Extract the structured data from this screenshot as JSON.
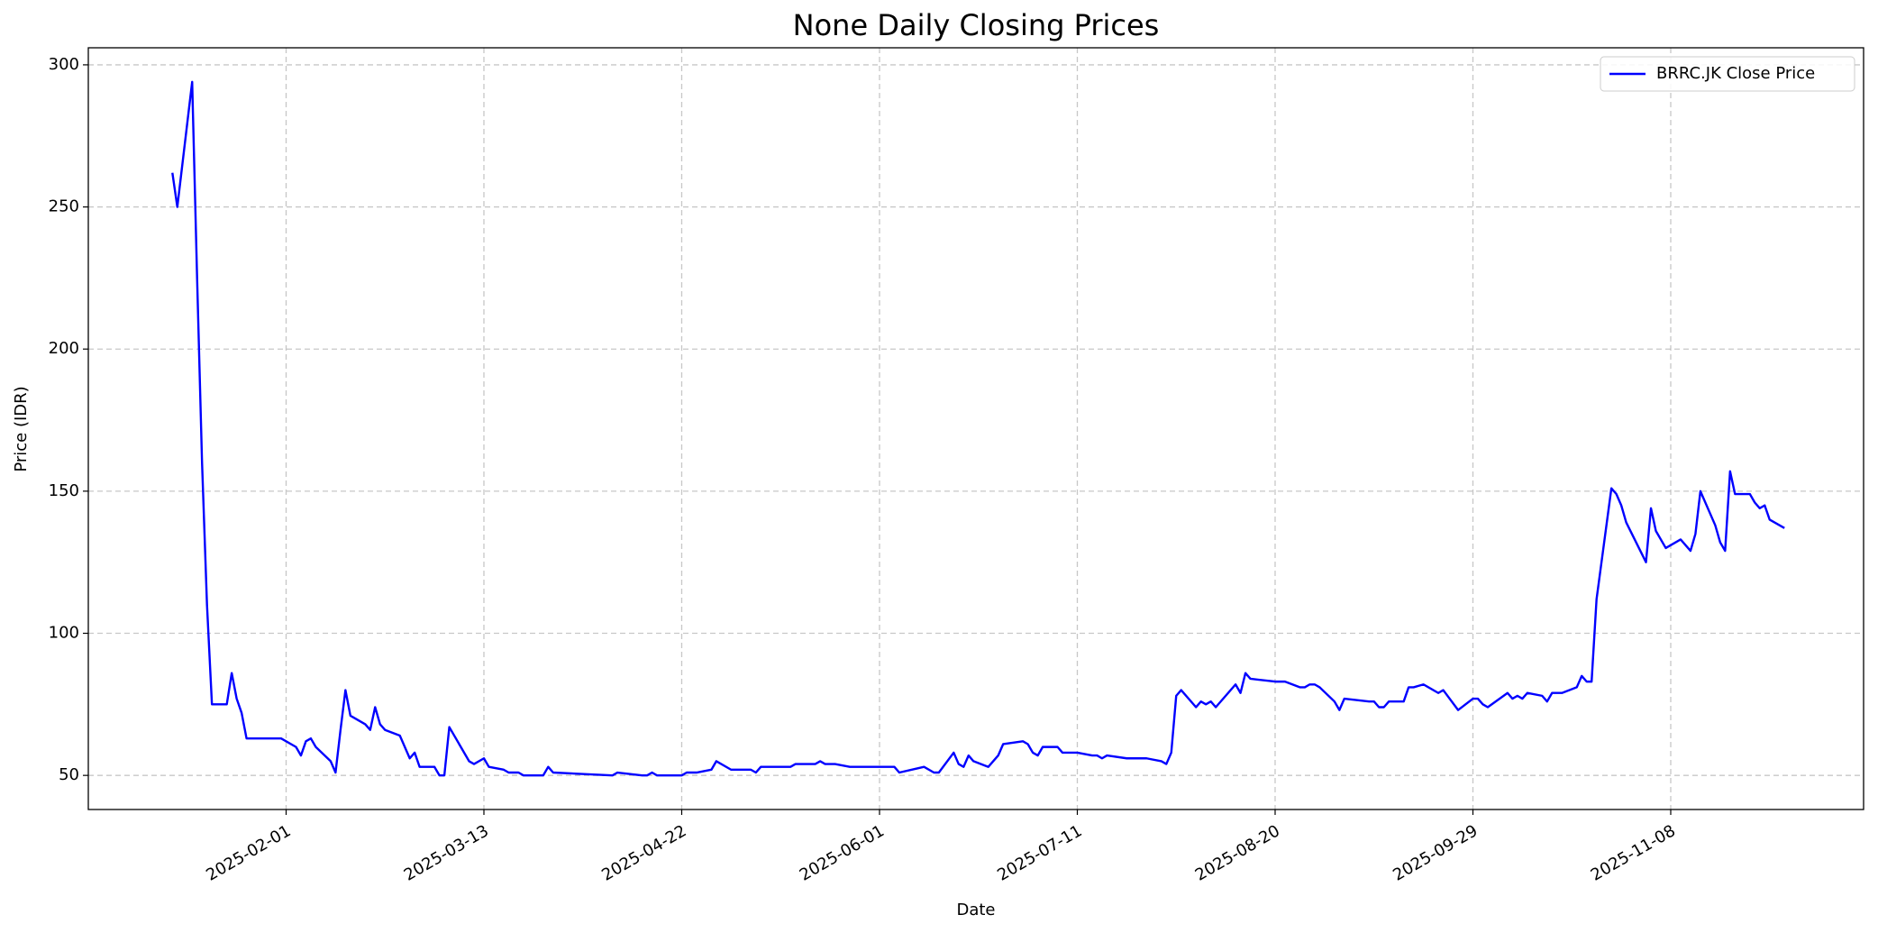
{
  "chart_data": {
    "type": "line",
    "title": "None Daily Closing Prices",
    "x_label": "Date",
    "y_label": "Price (IDR)",
    "x": [
      "2025-01-09",
      "2025-01-10",
      "2025-01-13",
      "2025-01-14",
      "2025-01-15",
      "2025-01-16",
      "2025-01-17",
      "2025-01-20",
      "2025-01-21",
      "2025-01-22",
      "2025-01-23",
      "2025-01-24",
      "2025-01-31",
      "2025-02-03",
      "2025-02-04",
      "2025-02-05",
      "2025-02-06",
      "2025-02-07",
      "2025-02-10",
      "2025-02-11",
      "2025-02-12",
      "2025-02-13",
      "2025-02-14",
      "2025-02-17",
      "2025-02-18",
      "2025-02-19",
      "2025-02-20",
      "2025-02-21",
      "2025-02-24",
      "2025-02-26",
      "2025-02-27",
      "2025-02-28",
      "2025-03-03",
      "2025-03-04",
      "2025-03-05",
      "2025-03-06",
      "2025-03-10",
      "2025-03-11",
      "2025-03-13",
      "2025-03-14",
      "2025-03-17",
      "2025-03-18",
      "2025-03-20",
      "2025-03-21",
      "2025-03-25",
      "2025-03-26",
      "2025-03-27",
      "2025-04-08",
      "2025-04-09",
      "2025-04-14",
      "2025-04-15",
      "2025-04-16",
      "2025-04-17",
      "2025-04-22",
      "2025-04-23",
      "2025-04-25",
      "2025-04-28",
      "2025-04-29",
      "2025-05-02",
      "2025-05-06",
      "2025-05-07",
      "2025-05-08",
      "2025-05-14",
      "2025-05-15",
      "2025-05-19",
      "2025-05-20",
      "2025-05-21",
      "2025-05-23",
      "2025-05-26",
      "2025-06-04",
      "2025-06-05",
      "2025-06-10",
      "2025-06-12",
      "2025-06-13",
      "2025-06-16",
      "2025-06-17",
      "2025-06-18",
      "2025-06-19",
      "2025-06-20",
      "2025-06-23",
      "2025-06-25",
      "2025-06-26",
      "2025-06-30",
      "2025-07-01",
      "2025-07-02",
      "2025-07-03",
      "2025-07-04",
      "2025-07-07",
      "2025-07-08",
      "2025-07-11",
      "2025-07-14",
      "2025-07-15",
      "2025-07-16",
      "2025-07-17",
      "2025-07-21",
      "2025-07-25",
      "2025-07-28",
      "2025-07-29",
      "2025-07-30",
      "2025-07-31",
      "2025-08-01",
      "2025-08-04",
      "2025-08-05",
      "2025-08-06",
      "2025-08-07",
      "2025-08-08",
      "2025-08-12",
      "2025-08-13",
      "2025-08-14",
      "2025-08-15",
      "2025-08-20",
      "2025-08-22",
      "2025-08-25",
      "2025-08-26",
      "2025-08-27",
      "2025-08-28",
      "2025-08-29",
      "2025-09-01",
      "2025-09-02",
      "2025-09-03",
      "2025-09-08",
      "2025-09-09",
      "2025-09-10",
      "2025-09-11",
      "2025-09-12",
      "2025-09-15",
      "2025-09-16",
      "2025-09-17",
      "2025-09-19",
      "2025-09-22",
      "2025-09-23",
      "2025-09-26",
      "2025-09-29",
      "2025-09-30",
      "2025-10-01",
      "2025-10-02",
      "2025-10-06",
      "2025-10-07",
      "2025-10-08",
      "2025-10-09",
      "2025-10-10",
      "2025-10-13",
      "2025-10-14",
      "2025-10-15",
      "2025-10-17",
      "2025-10-20",
      "2025-10-21",
      "2025-10-22",
      "2025-10-23",
      "2025-10-24",
      "2025-10-27",
      "2025-10-28",
      "2025-10-29",
      "2025-10-30",
      "2025-11-03",
      "2025-11-04",
      "2025-11-05",
      "2025-11-07",
      "2025-11-10",
      "2025-11-12",
      "2025-11-13",
      "2025-11-14",
      "2025-11-17",
      "2025-11-18",
      "2025-11-19",
      "2025-11-20",
      "2025-11-21",
      "2025-11-24",
      "2025-11-25",
      "2025-11-26",
      "2025-11-27",
      "2025-11-28",
      "2025-12-01"
    ],
    "series": [
      {
        "name": "BRRC.JK Close Price",
        "color": "#0000ff",
        "values": [
          262,
          250,
          294,
          225,
          160,
          110,
          75,
          75,
          86,
          77,
          72,
          63,
          63,
          60,
          57,
          62,
          63,
          60,
          55,
          51,
          66,
          80,
          71,
          68,
          66,
          74,
          68,
          66,
          64,
          56,
          58,
          53,
          53,
          50,
          50,
          67,
          55,
          54,
          56,
          53,
          52,
          51,
          51,
          50,
          50,
          53,
          51,
          50,
          51,
          50,
          50,
          51,
          50,
          50,
          51,
          51,
          52,
          55,
          52,
          52,
          51,
          53,
          53,
          54,
          54,
          55,
          54,
          54,
          53,
          53,
          51,
          53,
          51,
          51,
          58,
          54,
          53,
          57,
          55,
          53,
          57,
          61,
          62,
          61,
          58,
          57,
          60,
          60,
          58,
          58,
          57,
          57,
          56,
          57,
          56,
          56,
          55,
          54,
          58,
          78,
          80,
          74,
          76,
          75,
          76,
          74,
          82,
          79,
          86,
          84,
          83,
          83,
          81,
          81,
          82,
          82,
          81,
          76,
          73,
          77,
          76,
          76,
          74,
          74,
          76,
          76,
          81,
          81,
          82,
          79,
          80,
          73,
          77,
          77,
          75,
          74,
          79,
          77,
          78,
          77,
          79,
          78,
          76,
          79,
          79,
          81,
          85,
          83,
          83,
          112,
          151,
          149,
          145,
          139,
          125,
          144,
          136,
          130,
          133,
          129,
          135,
          150,
          138,
          132,
          129,
          157,
          149,
          149,
          146,
          144,
          145,
          140,
          137
        ]
      }
    ],
    "xlim": [
      "2024-12-23",
      "2025-12-17"
    ],
    "xticks": [
      "2025-02-01",
      "2025-03-13",
      "2025-04-22",
      "2025-06-01",
      "2025-07-11",
      "2025-08-20",
      "2025-09-29",
      "2025-11-08"
    ],
    "ylim": [
      38,
      306
    ],
    "yticks": [
      50,
      100,
      150,
      200,
      250,
      300
    ],
    "grid": true,
    "legend": "upper right"
  }
}
